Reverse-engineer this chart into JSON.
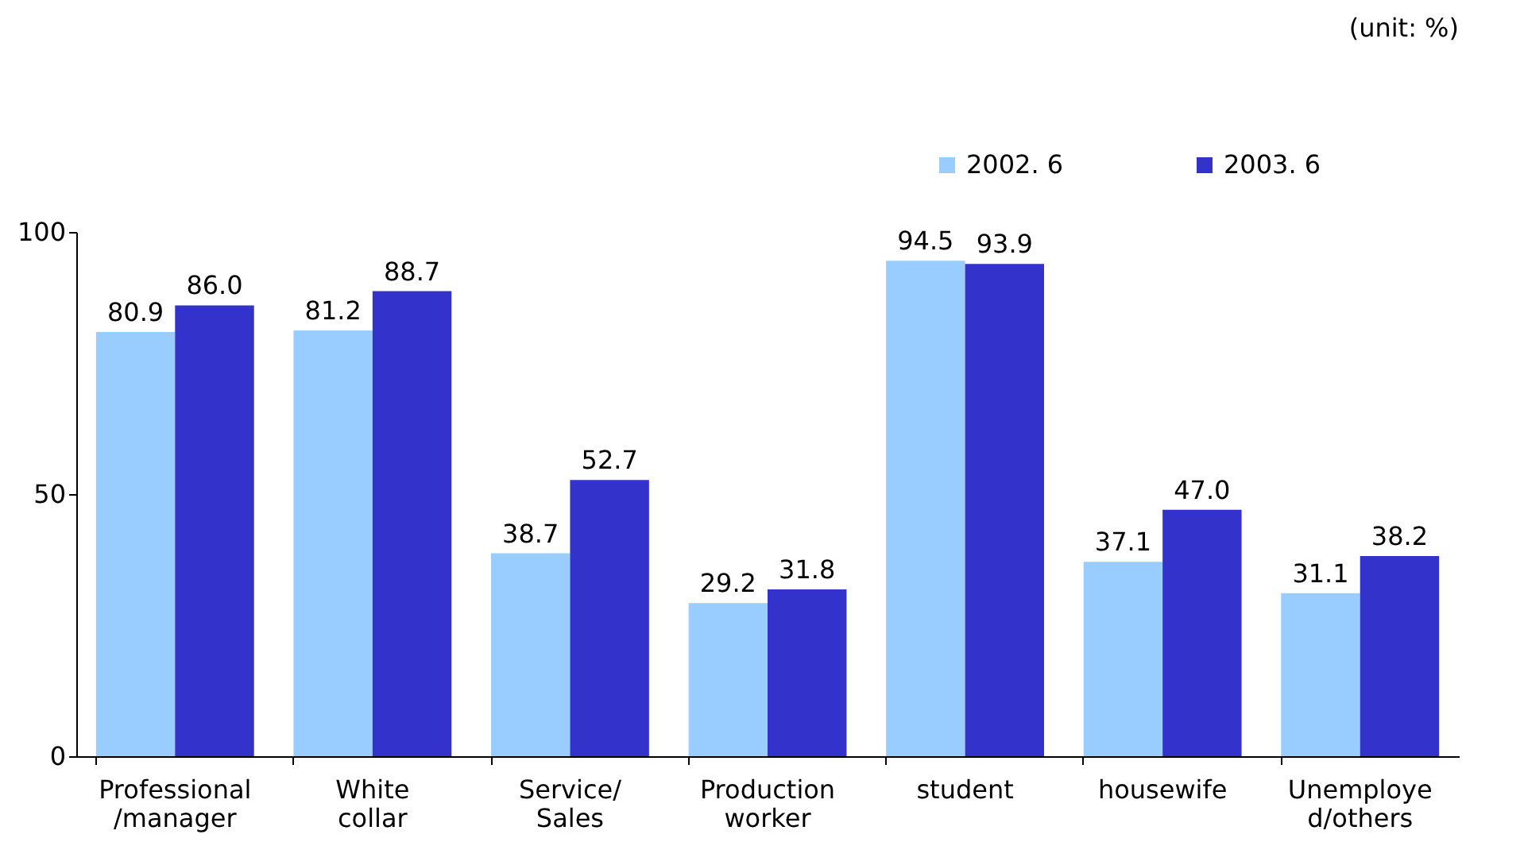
{
  "chart_data": {
    "type": "bar",
    "annotations": [
      "(unit: %)"
    ],
    "categories": [
      "Professional\n/manager",
      "White\ncollar",
      "Service/\nSales",
      "Production\nworker",
      "student",
      "housewife",
      "Unemploye\nd/others"
    ],
    "series": [
      {
        "name": "2002. 6",
        "color": "#99ccff",
        "values": [
          80.9,
          81.2,
          38.7,
          29.2,
          94.5,
          37.1,
          31.1
        ],
        "value_labels": [
          "80.9",
          "81.2",
          "38.7",
          "29.2",
          "94.5",
          "37.1",
          "31.1"
        ]
      },
      {
        "name": "2003. 6",
        "color": "#3333cc",
        "values": [
          86.0,
          88.7,
          52.7,
          31.8,
          93.9,
          47.0,
          38.2
        ],
        "value_labels": [
          "86.0",
          "88.7",
          "52.7",
          "31.8",
          "93.9",
          "47.0",
          "38.2"
        ]
      }
    ],
    "ylim": [
      0,
      100
    ],
    "yticks": [
      0,
      50,
      100
    ],
    "grid": false,
    "legend": "top right"
  }
}
